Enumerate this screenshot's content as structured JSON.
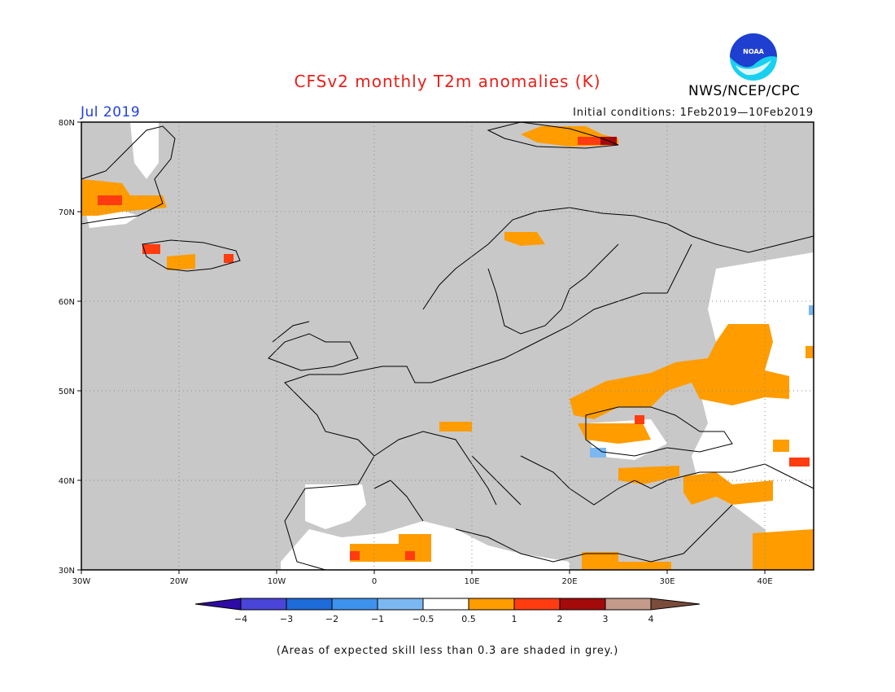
{
  "header": {
    "title": "CFSv2 monthly T2m anomalies (K)",
    "month": "Jul 2019",
    "initial_conditions": "Initial conditions: 1Feb2019—10Feb2019",
    "organization": "NWS/NCEP/CPC",
    "logo_text": "NOAA"
  },
  "map": {
    "lon_range": [
      -30,
      45
    ],
    "lat_range": [
      30,
      80
    ],
    "x_ticks": [
      "30W",
      "20W",
      "10W",
      "0",
      "10E",
      "20E",
      "30E",
      "40E"
    ],
    "y_ticks": [
      "80N",
      "70N",
      "60N",
      "50N",
      "40N",
      "30N"
    ],
    "grey_color": "#c8c8c8",
    "land_outline_color": "#000000"
  },
  "colorbar": {
    "labels": [
      "−4",
      "−3",
      "−2",
      "−1",
      "−0.5",
      "0.5",
      "1",
      "2",
      "3",
      "4"
    ],
    "colors": [
      "#2f0ba5",
      "#4a45d8",
      "#1d6ad9",
      "#3d92ec",
      "#7bb8f2",
      "#ffffff",
      "#ff9c00",
      "#ff3b10",
      "#a50a0a",
      "#c49a8a",
      "#7b4b3b"
    ]
  },
  "footnote": "(Areas of expected skill less than 0.3 are shaded in grey.)"
}
